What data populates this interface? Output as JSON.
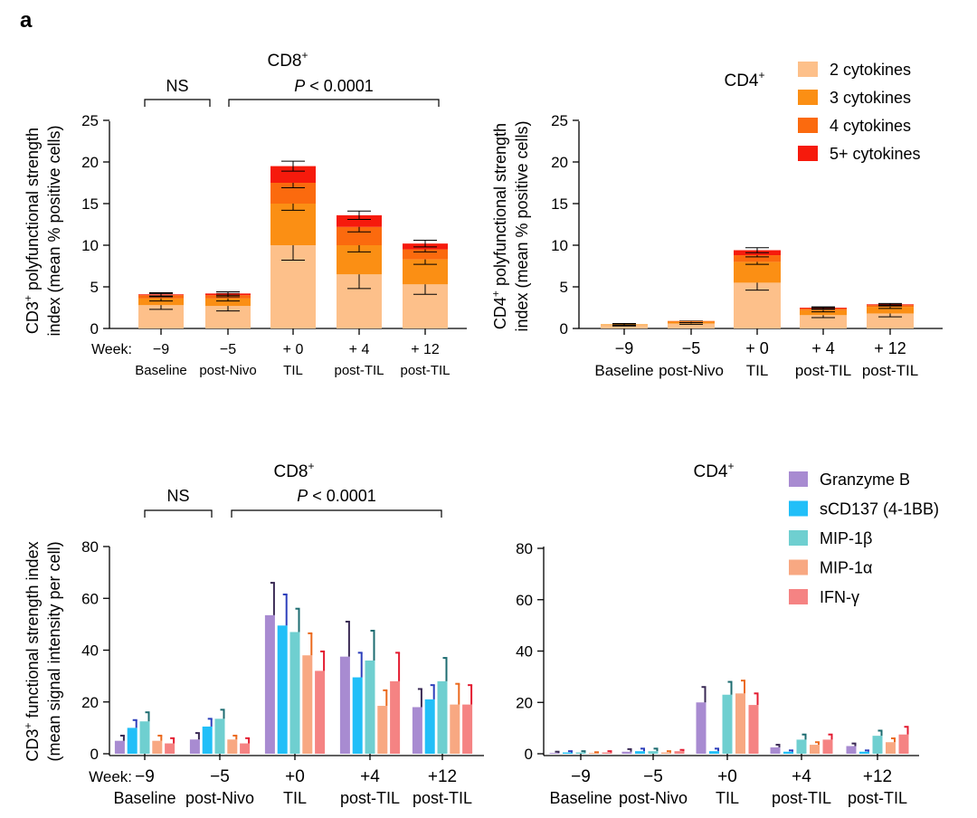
{
  "panel_label": "a",
  "colors": {
    "c2": "#FDC08A",
    "c3": "#FB8F14",
    "c4": "#FB6A0E",
    "c5": "#F61A0C",
    "granzyme": "#A88BD1",
    "granzyme_err": "#3A2A55",
    "scd137": "#21BFF8",
    "scd137_err": "#2D3FBB",
    "mip1b": "#6FCFD0",
    "mip1b_err": "#1D6C71",
    "mip1a": "#F8A882",
    "mip1a_err": "#EB6A1E",
    "ifng": "#F58383",
    "ifng_err": "#E31B30"
  },
  "significance": {
    "ns": "NS",
    "p_symbol": "P",
    "p_rest": " < 0.0001"
  },
  "legend_top": [
    "2 cytokines",
    "3 cytokines",
    "4 cytokines",
    "5+ cytokines"
  ],
  "legend_bottom": [
    "Granzyme B",
    "sCD137 (4-1BB)",
    "MIP-1β",
    "MIP-1α",
    "IFN-γ"
  ],
  "chart_data": [
    {
      "id": "top-cd8",
      "type": "bar",
      "stacked": true,
      "title": "CD8",
      "title_sup": "+",
      "ylabel_line1": "CD3",
      "ylabel_sup": "+",
      "ylabel_rest": " polyfunctional strength",
      "ylabel_line2": "index (mean % positive cells)",
      "week_label": "Week:",
      "categories": [
        "−9",
        "−5",
        "+ 0",
        "+ 4",
        "+ 12"
      ],
      "category_sublabels": [
        "Baseline",
        "post-Nivo",
        "TIL",
        "post-TIL",
        "post-TIL"
      ],
      "ylim": [
        0,
        25
      ],
      "yticks": [
        "0",
        "5",
        "10",
        "15",
        "20",
        "25"
      ],
      "series": [
        {
          "name": "2 cytokines",
          "values": [
            2.8,
            2.7,
            10.0,
            6.5,
            5.3
          ],
          "err": [
            0.5,
            0.6,
            1.8,
            1.7,
            1.2
          ]
        },
        {
          "name": "3 cytokines",
          "values": [
            0.8,
            0.9,
            5.0,
            3.5,
            3.0
          ],
          "err": [
            0.3,
            0.3,
            0.8,
            0.8,
            0.6
          ]
        },
        {
          "name": "4 cytokines",
          "values": [
            0.4,
            0.4,
            2.5,
            2.2,
            1.2
          ],
          "err": [
            0.2,
            0.2,
            0.6,
            0.6,
            0.3
          ]
        },
        {
          "name": "5+ cytokines",
          "values": [
            0.1,
            0.2,
            2.0,
            1.4,
            0.7
          ],
          "err": [
            0.2,
            0.2,
            0.6,
            0.5,
            0.4
          ]
        }
      ]
    },
    {
      "id": "top-cd4",
      "type": "bar",
      "stacked": true,
      "title": "CD4",
      "title_sup": "+",
      "ylabel_line1": "CD4",
      "ylabel_sup": "+",
      "ylabel_rest": " polyfunctional strength",
      "ylabel_line2": "index (mean % positive cells)",
      "week_label": "",
      "categories": [
        "−9",
        "−5",
        "+ 0",
        "+ 4",
        "+ 12"
      ],
      "category_sublabels": [
        "Baseline",
        "post-Nivo",
        "TIL",
        "post-TIL",
        "post-TIL"
      ],
      "ylim": [
        0,
        25
      ],
      "yticks": [
        "0",
        "5",
        "10",
        "15",
        "20",
        "25"
      ],
      "series": [
        {
          "name": "2 cytokines",
          "values": [
            0.4,
            0.6,
            5.5,
            1.6,
            1.8
          ],
          "err": [
            0.1,
            0.1,
            0.9,
            0.3,
            0.4
          ]
        },
        {
          "name": "3 cytokines",
          "values": [
            0.1,
            0.2,
            2.5,
            0.6,
            0.8
          ],
          "err": [
            0.1,
            0.1,
            0.3,
            0.2,
            0.2
          ]
        },
        {
          "name": "4 cytokines",
          "values": [
            0.0,
            0.1,
            0.8,
            0.2,
            0.2
          ],
          "err": [
            0.0,
            0.0,
            0.2,
            0.1,
            0.1
          ]
        },
        {
          "name": "5+ cytokines",
          "values": [
            0.0,
            0.0,
            0.6,
            0.1,
            0.1
          ],
          "err": [
            0.0,
            0.0,
            0.3,
            0.1,
            0.1
          ]
        }
      ]
    },
    {
      "id": "bottom-cd8",
      "type": "bar",
      "stacked": false,
      "title": "CD8",
      "title_sup": "+",
      "ylabel_line1": "CD3",
      "ylabel_sup": "+",
      "ylabel_rest": " functional strength index",
      "ylabel_line2": "(mean signal intensity per cell)",
      "week_label": "Week:",
      "categories": [
        "−9",
        "−5",
        "+0",
        "+4",
        "+12"
      ],
      "category_sublabels": [
        "Baseline",
        "post-Nivo",
        "TIL",
        "post-TIL",
        "post-TIL"
      ],
      "ylim": [
        0,
        80
      ],
      "yticks": [
        "0",
        "20",
        "40",
        "60",
        "80"
      ],
      "series": [
        {
          "name": "Granzyme B",
          "values": [
            5,
            5.5,
            53.5,
            37.5,
            18
          ],
          "err": [
            2,
            2.5,
            12.5,
            13.5,
            7
          ]
        },
        {
          "name": "sCD137 (4-1BB)",
          "values": [
            10,
            10.5,
            49.5,
            29.5,
            21
          ],
          "err": [
            3,
            3,
            12,
            9.5,
            5.5
          ]
        },
        {
          "name": "MIP-1β",
          "values": [
            12.5,
            13.5,
            47,
            36,
            28
          ],
          "err": [
            3.5,
            3.5,
            9,
            11.5,
            9
          ]
        },
        {
          "name": "MIP-1α",
          "values": [
            5,
            5.5,
            38,
            18.5,
            19
          ],
          "err": [
            2,
            1.5,
            8.5,
            6,
            8
          ]
        },
        {
          "name": "IFN-γ",
          "values": [
            4,
            4,
            32,
            28,
            19
          ],
          "err": [
            2,
            2,
            7.5,
            11,
            7.5
          ]
        }
      ]
    },
    {
      "id": "bottom-cd4",
      "type": "bar",
      "stacked": false,
      "title": "CD4",
      "title_sup": "+",
      "ylabel_line1": "",
      "ylabel_sup": "",
      "ylabel_rest": "",
      "ylabel_line2": "",
      "week_label": "",
      "categories": [
        "−9",
        "−5",
        "+0",
        "+4",
        "+12"
      ],
      "category_sublabels": [
        "Baseline",
        "post-Nivo",
        "TIL",
        "post-TIL",
        "post-TIL"
      ],
      "ylim": [
        0,
        80
      ],
      "yticks": [
        "0",
        "20",
        "40",
        "60",
        "80"
      ],
      "series": [
        {
          "name": "Granzyme B",
          "values": [
            0.3,
            0.8,
            20,
            2.5,
            3
          ],
          "err": [
            0.5,
            1,
            6,
            1,
            1
          ]
        },
        {
          "name": "sCD137 (4-1BB)",
          "values": [
            0.5,
            1,
            1,
            0.8,
            0.8
          ],
          "err": [
            0.5,
            1,
            1,
            0.5,
            0.5
          ]
        },
        {
          "name": "MIP-1β",
          "values": [
            0.5,
            1,
            23,
            5.5,
            7
          ],
          "err": [
            0.5,
            1,
            5,
            2,
            2
          ]
        },
        {
          "name": "MIP-1α",
          "values": [
            0.3,
            0.5,
            23.5,
            3.5,
            4.5
          ],
          "err": [
            0.3,
            0.5,
            5,
            1,
            1.5
          ]
        },
        {
          "name": "IFN-γ",
          "values": [
            0.5,
            1,
            19,
            5.5,
            7.5
          ],
          "err": [
            0.5,
            0.5,
            4.5,
            2,
            3
          ]
        }
      ]
    }
  ]
}
